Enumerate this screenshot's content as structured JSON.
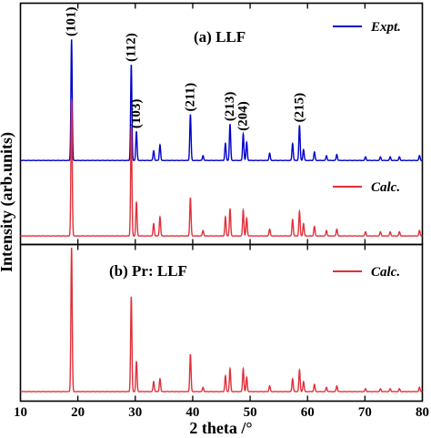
{
  "chart_data": {
    "type": "line",
    "xlabel": "2 theta /°",
    "ylabel": "Intensity (arb.units)",
    "xlim": [
      10,
      80
    ],
    "xticks": [
      10,
      20,
      30,
      40,
      50,
      60,
      70,
      80
    ],
    "panels": [
      {
        "title": "(a) LLF",
        "series": [
          {
            "name": "Expt.",
            "color": "#0000cc",
            "peaks": [
              {
                "x": 18.9,
                "y": 100
              },
              {
                "x": 29.3,
                "y": 79
              },
              {
                "x": 30.2,
                "y": 24
              },
              {
                "x": 33.2,
                "y": 8
              },
              {
                "x": 34.3,
                "y": 13
              },
              {
                "x": 39.6,
                "y": 38
              },
              {
                "x": 41.8,
                "y": 4
              },
              {
                "x": 45.7,
                "y": 14
              },
              {
                "x": 46.5,
                "y": 30
              },
              {
                "x": 48.8,
                "y": 22
              },
              {
                "x": 49.4,
                "y": 15
              },
              {
                "x": 53.4,
                "y": 6
              },
              {
                "x": 57.4,
                "y": 14
              },
              {
                "x": 58.6,
                "y": 29
              },
              {
                "x": 59.3,
                "y": 9
              },
              {
                "x": 61.2,
                "y": 7
              },
              {
                "x": 63.3,
                "y": 4
              },
              {
                "x": 65.1,
                "y": 5
              },
              {
                "x": 70.1,
                "y": 3
              },
              {
                "x": 72.7,
                "y": 3
              },
              {
                "x": 74.4,
                "y": 3
              },
              {
                "x": 76.0,
                "y": 3
              },
              {
                "x": 79.5,
                "y": 4
              }
            ]
          },
          {
            "name": "Calc.",
            "color": "#e0303a",
            "peaks": [
              {
                "x": 18.9,
                "y": 100
              },
              {
                "x": 29.3,
                "y": 80
              },
              {
                "x": 30.2,
                "y": 25
              },
              {
                "x": 33.2,
                "y": 9
              },
              {
                "x": 34.3,
                "y": 14
              },
              {
                "x": 39.6,
                "y": 28
              },
              {
                "x": 41.8,
                "y": 4
              },
              {
                "x": 45.7,
                "y": 14
              },
              {
                "x": 46.5,
                "y": 20
              },
              {
                "x": 48.8,
                "y": 19
              },
              {
                "x": 49.4,
                "y": 13
              },
              {
                "x": 53.4,
                "y": 5
              },
              {
                "x": 57.4,
                "y": 12
              },
              {
                "x": 58.6,
                "y": 18
              },
              {
                "x": 59.3,
                "y": 9
              },
              {
                "x": 61.2,
                "y": 7
              },
              {
                "x": 63.3,
                "y": 4
              },
              {
                "x": 65.1,
                "y": 5
              },
              {
                "x": 70.1,
                "y": 3
              },
              {
                "x": 72.7,
                "y": 3
              },
              {
                "x": 74.4,
                "y": 3
              },
              {
                "x": 76.0,
                "y": 3
              },
              {
                "x": 79.5,
                "y": 4
              }
            ]
          }
        ],
        "annotations": [
          {
            "label": "(101)",
            "x": 18.9,
            "rotated": true
          },
          {
            "label": "(112)",
            "x": 29.3,
            "rotated": true
          },
          {
            "label": "(103)",
            "x": 30.2,
            "rotated": true
          },
          {
            "label": "(211)",
            "x": 39.6,
            "rotated": true
          },
          {
            "label": "(213)",
            "x": 46.5,
            "rotated": true
          },
          {
            "label": "(204)",
            "x": 48.8,
            "rotated": true
          },
          {
            "label": "(215)",
            "x": 58.6,
            "rotated": true
          }
        ]
      },
      {
        "title": "(b) Pr: LLF",
        "series": [
          {
            "name": "Calc.",
            "color": "#e0303a",
            "peaks": [
              {
                "x": 18.9,
                "y": 100
              },
              {
                "x": 29.3,
                "y": 66
              },
              {
                "x": 30.2,
                "y": 21
              },
              {
                "x": 33.2,
                "y": 7
              },
              {
                "x": 34.3,
                "y": 9
              },
              {
                "x": 39.6,
                "y": 26
              },
              {
                "x": 41.8,
                "y": 3
              },
              {
                "x": 45.7,
                "y": 11
              },
              {
                "x": 46.5,
                "y": 16
              },
              {
                "x": 48.8,
                "y": 16
              },
              {
                "x": 49.4,
                "y": 10
              },
              {
                "x": 53.4,
                "y": 4
              },
              {
                "x": 57.4,
                "y": 9
              },
              {
                "x": 58.6,
                "y": 15
              },
              {
                "x": 59.3,
                "y": 7
              },
              {
                "x": 61.2,
                "y": 5
              },
              {
                "x": 63.3,
                "y": 3
              },
              {
                "x": 65.1,
                "y": 4
              },
              {
                "x": 70.1,
                "y": 2
              },
              {
                "x": 72.7,
                "y": 2
              },
              {
                "x": 74.4,
                "y": 2
              },
              {
                "x": 76.0,
                "y": 2
              },
              {
                "x": 79.5,
                "y": 3
              }
            ]
          }
        ]
      }
    ]
  }
}
